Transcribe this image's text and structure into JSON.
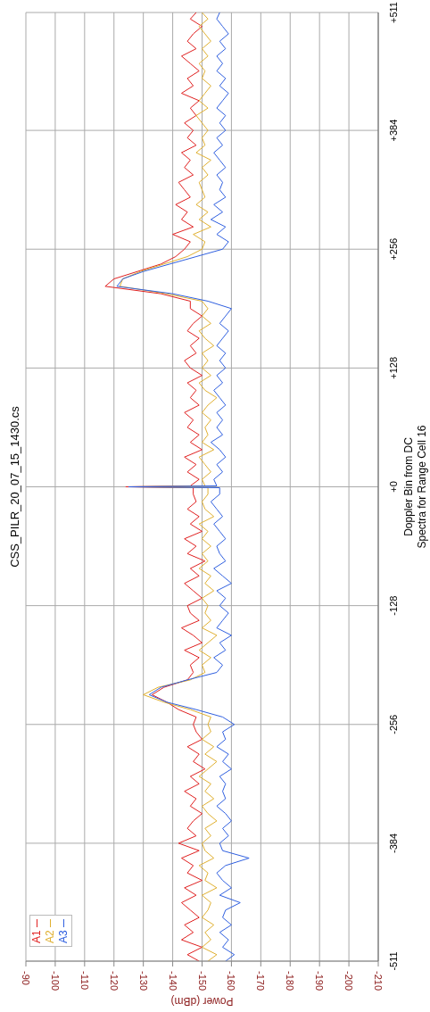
{
  "chart_data": {
    "type": "line",
    "title": "CSS_PILR_20_07_15_1430.cs",
    "xlabel": "Power (dBm)",
    "ylabel": "Doppler Bin from DC\nSpectra for Range Cell 16",
    "series": [
      {
        "name": "A1",
        "color": "#e02020",
        "x": [
          -149,
          -145,
          -150,
          -143,
          -147,
          -144,
          -149,
          -146,
          -143,
          -148,
          -144,
          -150,
          -145,
          -147,
          -143,
          -149,
          -142,
          -148,
          -145,
          -147,
          -150,
          -146,
          -148,
          -144,
          -149,
          -146,
          -151,
          -147,
          -149,
          -145,
          -150,
          -148,
          -147,
          -148,
          -142,
          -138,
          -133,
          -137,
          -145,
          -147,
          -146,
          -149,
          -144,
          -150,
          -147,
          -143,
          -149,
          -146,
          -145,
          -150,
          -147,
          -144,
          -149,
          -146,
          -151,
          -145,
          -148,
          -144,
          -150,
          -146,
          -149,
          -145,
          -148,
          -147,
          -147,
          -124,
          -146,
          -149,
          -145,
          -148,
          -144,
          -150,
          -146,
          -149,
          -145,
          -147,
          -144,
          -149,
          -146,
          -148,
          -145,
          -150,
          -146,
          -144,
          -148,
          -146,
          -149,
          -145,
          -147,
          -150,
          -146,
          -146,
          -136,
          -117,
          -120,
          -128,
          -136,
          -141,
          -144,
          -146,
          -140,
          -147,
          -143,
          -145,
          -141,
          -146,
          -144,
          -142,
          -147,
          -144,
          -146,
          -143,
          -148,
          -145,
          -147,
          -144,
          -148,
          -146,
          -149,
          -143,
          -147,
          -145,
          -149,
          -146,
          -143,
          -148,
          -145,
          -147,
          -150,
          -146,
          -148
        ],
        "values": [
          -511,
          -504,
          -496,
          -488,
          -480,
          -472,
          -464,
          -456,
          -448,
          -440,
          -432,
          -424,
          -416,
          -408,
          -400,
          -392,
          -384,
          -376,
          -368,
          -360,
          -352,
          -344,
          -336,
          -328,
          -320,
          -312,
          -304,
          -296,
          -288,
          -280,
          -272,
          -264,
          -256,
          -248,
          -240,
          -232,
          -224,
          -216,
          -208,
          -200,
          -192,
          -184,
          -176,
          -168,
          -160,
          -152,
          -144,
          -136,
          -128,
          -120,
          -112,
          -104,
          -96,
          -88,
          -80,
          -72,
          -64,
          -56,
          -48,
          -40,
          -32,
          -24,
          -16,
          -8,
          -1,
          0,
          1,
          8,
          16,
          24,
          32,
          40,
          48,
          56,
          64,
          72,
          80,
          88,
          96,
          104,
          112,
          120,
          128,
          136,
          144,
          152,
          160,
          168,
          176,
          184,
          192,
          200,
          208,
          216,
          224,
          232,
          240,
          248,
          256,
          264,
          272,
          280,
          288,
          296,
          304,
          312,
          320,
          328,
          336,
          344,
          352,
          360,
          368,
          376,
          384,
          392,
          400,
          408,
          416,
          424,
          432,
          440,
          448,
          456,
          464,
          472,
          480,
          488,
          496,
          504,
          511
        ]
      },
      {
        "name": "A2",
        "color": "#e0b030",
        "x": [
          -152,
          -155,
          -150,
          -153,
          -151,
          -154,
          -150,
          -152,
          -153,
          -150,
          -155,
          -151,
          -152,
          -149,
          -154,
          -151,
          -150,
          -153,
          -151,
          -155,
          -152,
          -150,
          -154,
          -151,
          -153,
          -149,
          -152,
          -155,
          -151,
          -154,
          -150,
          -153,
          -152,
          -153,
          -146,
          -137,
          -130,
          -135,
          -146,
          -151,
          -150,
          -153,
          -149,
          -152,
          -155,
          -150,
          -153,
          -151,
          -152,
          -150,
          -154,
          -151,
          -153,
          -149,
          -152,
          -150,
          -153,
          -150,
          -152,
          -149,
          -154,
          -151,
          -150,
          -152,
          -152,
          -126,
          -151,
          -150,
          -153,
          -151,
          -149,
          -154,
          -150,
          -152,
          -151,
          -153,
          -150,
          -152,
          -155,
          -151,
          -149,
          -153,
          -150,
          -152,
          -150,
          -154,
          -151,
          -149,
          -153,
          -150,
          -152,
          -150,
          -138,
          -122,
          -123,
          -129,
          -137,
          -145,
          -150,
          -151,
          -147,
          -153,
          -149,
          -152,
          -148,
          -151,
          -150,
          -149,
          -152,
          -150,
          -153,
          -148,
          -151,
          -150,
          -152,
          -150,
          -148,
          -152,
          -149,
          -151,
          -153,
          -150,
          -151,
          -149,
          -152,
          -150,
          -153,
          -151,
          -149,
          -152,
          -150
        ],
        "values": [
          -511,
          -504,
          -496,
          -488,
          -480,
          -472,
          -464,
          -456,
          -448,
          -440,
          -432,
          -424,
          -416,
          -408,
          -400,
          -392,
          -384,
          -376,
          -368,
          -360,
          -352,
          -344,
          -336,
          -328,
          -320,
          -312,
          -304,
          -296,
          -288,
          -280,
          -272,
          -264,
          -256,
          -248,
          -240,
          -232,
          -224,
          -216,
          -208,
          -200,
          -192,
          -184,
          -176,
          -168,
          -160,
          -152,
          -144,
          -136,
          -128,
          -120,
          -112,
          -104,
          -96,
          -88,
          -80,
          -72,
          -64,
          -56,
          -48,
          -40,
          -32,
          -24,
          -16,
          -8,
          -1,
          0,
          1,
          8,
          16,
          24,
          32,
          40,
          48,
          56,
          64,
          72,
          80,
          88,
          96,
          104,
          112,
          120,
          128,
          136,
          144,
          152,
          160,
          168,
          176,
          184,
          192,
          200,
          208,
          216,
          224,
          232,
          240,
          248,
          256,
          264,
          272,
          280,
          288,
          296,
          304,
          312,
          320,
          328,
          336,
          344,
          352,
          360,
          368,
          376,
          384,
          392,
          400,
          408,
          416,
          424,
          432,
          440,
          448,
          456,
          464,
          472,
          480,
          488,
          496,
          504,
          511
        ]
      },
      {
        "name": "A3",
        "color": "#3060e0",
        "x": [
          -158,
          -161,
          -157,
          -159,
          -156,
          -160,
          -157,
          -158,
          -163,
          -156,
          -160,
          -157,
          -155,
          -158,
          -166,
          -157,
          -156,
          -159,
          -157,
          -160,
          -158,
          -155,
          -158,
          -157,
          -158,
          -156,
          -160,
          -157,
          -159,
          -155,
          -158,
          -157,
          -161,
          -157,
          -148,
          -138,
          -132,
          -136,
          -145,
          -155,
          -157,
          -154,
          -158,
          -156,
          -160,
          -155,
          -157,
          -159,
          -156,
          -158,
          -155,
          -160,
          -157,
          -154,
          -158,
          -156,
          -155,
          -158,
          -156,
          -154,
          -157,
          -155,
          -153,
          -156,
          -156,
          -125,
          -155,
          -154,
          -157,
          -155,
          -158,
          -156,
          -153,
          -157,
          -155,
          -157,
          -155,
          -158,
          -156,
          -154,
          -157,
          -155,
          -158,
          -156,
          -158,
          -155,
          -157,
          -159,
          -156,
          -158,
          -160,
          -152,
          -140,
          -121,
          -123,
          -130,
          -139,
          -148,
          -157,
          -159,
          -155,
          -158,
          -153,
          -157,
          -154,
          -158,
          -156,
          -157,
          -155,
          -158,
          -156,
          -154,
          -157,
          -155,
          -158,
          -156,
          -158,
          -155,
          -157,
          -159,
          -156,
          -158,
          -155,
          -157,
          -155,
          -158,
          -156,
          -159,
          -157,
          -155,
          -156
        ],
        "values": [
          -511,
          -504,
          -496,
          -488,
          -480,
          -472,
          -464,
          -456,
          -448,
          -440,
          -432,
          -424,
          -416,
          -408,
          -400,
          -392,
          -384,
          -376,
          -368,
          -360,
          -352,
          -344,
          -336,
          -328,
          -320,
          -312,
          -304,
          -296,
          -288,
          -280,
          -272,
          -264,
          -256,
          -248,
          -240,
          -232,
          -224,
          -216,
          -208,
          -200,
          -192,
          -184,
          -176,
          -168,
          -160,
          -152,
          -144,
          -136,
          -128,
          -120,
          -112,
          -104,
          -96,
          -88,
          -80,
          -72,
          -64,
          -56,
          -48,
          -40,
          -32,
          -24,
          -16,
          -8,
          -1,
          0,
          1,
          8,
          16,
          24,
          32,
          40,
          48,
          56,
          64,
          72,
          80,
          88,
          96,
          104,
          112,
          120,
          128,
          136,
          144,
          152,
          160,
          168,
          176,
          184,
          192,
          200,
          208,
          216,
          224,
          232,
          240,
          248,
          256,
          264,
          272,
          280,
          288,
          296,
          304,
          312,
          320,
          328,
          336,
          344,
          352,
          360,
          368,
          376,
          384,
          392,
          400,
          408,
          416,
          424,
          432,
          440,
          448,
          456,
          464,
          472,
          480,
          488,
          496,
          504,
          511
        ]
      }
    ],
    "xlim": [
      -90,
      -210
    ],
    "xticks": [
      -90,
      -100,
      -110,
      -120,
      -130,
      -140,
      -150,
      -160,
      -170,
      -180,
      -190,
      -200,
      -210
    ],
    "ylim": [
      -511,
      511
    ],
    "yticks": [
      -511,
      -384,
      -256,
      -128,
      {
        "value": 0,
        "label": "+0"
      },
      {
        "value": 128,
        "label": "+128"
      },
      {
        "value": 256,
        "label": "+256"
      },
      {
        "value": 384,
        "label": "+384"
      },
      {
        "value": 511,
        "label": "+511"
      }
    ],
    "grid": true,
    "legend": "bottom left"
  }
}
